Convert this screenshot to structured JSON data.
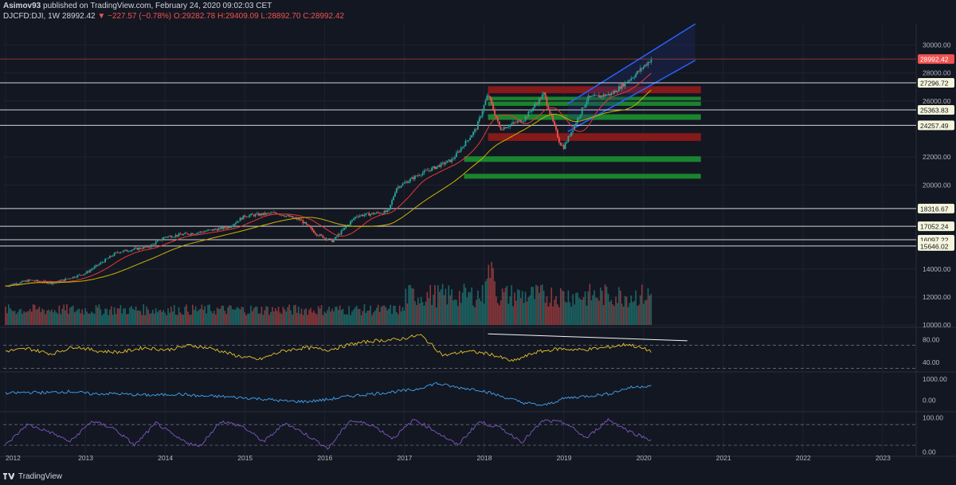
{
  "header": {
    "author": "Asimov93",
    "published": "published on TradingView.com, February 24, 2020 09:02:03 CET",
    "symbol": "DJCFD:DJI, 1W",
    "last": "28992.42",
    "change": "▼ −227.57 (−0.78%)",
    "ohlc": "O:29282.78 H:29409.09 L:28892.70 C:28992.42"
  },
  "footer": {
    "brand": "TradingView"
  },
  "colors": {
    "background": "#131722",
    "up": "#26a69a",
    "down": "#ef5350",
    "ma_fast": "#e53935",
    "ma_slow": "#c9b400",
    "channel": "#2962ff",
    "rsi_zone": "#3a1f5c"
  },
  "chart_data": [
    {
      "type": "candlestick",
      "series": [
        {
          "name": "price",
          "x": [
            2012.0,
            2012.3,
            2012.6,
            2013.0,
            2013.4,
            2013.8,
            2014.0,
            2014.4,
            2014.8,
            2015.0,
            2015.4,
            2015.7,
            2015.9,
            2016.1,
            2016.4,
            2016.8,
            2016.9,
            2017.2,
            2017.6,
            2017.9,
            2018.05,
            2018.2,
            2018.5,
            2018.75,
            2018.95,
            2019.0,
            2019.3,
            2019.6,
            2019.9,
            2020.1
          ],
          "values": [
            12800,
            13200,
            13000,
            13700,
            15200,
            15600,
            16300,
            16600,
            17000,
            17800,
            18000,
            17500,
            16500,
            16000,
            17800,
            18100,
            19800,
            20800,
            21800,
            24000,
            26500,
            24000,
            24700,
            26500,
            23000,
            22700,
            26200,
            26500,
            27900,
            28992
          ]
        }
      ],
      "title": "",
      "xlabel": "",
      "ylabel": "",
      "xlim": [
        2011.97,
        2023.42
      ],
      "ylim": [
        9900,
        31500
      ],
      "x_ticks": [
        "2012",
        "2013",
        "2014",
        "2015",
        "2016",
        "2017",
        "2018",
        "2019",
        "2020",
        "2021",
        "2022",
        "2023"
      ],
      "x_tick_values": [
        2012,
        2013,
        2014,
        2015,
        2016,
        2017,
        2018,
        2019,
        2020,
        2021,
        2022,
        2023
      ],
      "y_ticks": [
        "30000.00",
        "28000.00",
        "26000.00",
        "22000.00",
        "20000.00",
        "14000.00",
        "12000.00",
        "10000.00"
      ],
      "y_tick_values": [
        30000,
        28000,
        26000,
        22000,
        20000,
        14000,
        12000,
        10000
      ],
      "price_lines": [
        {
          "value": 28992.42,
          "label": "28992.42",
          "style": "current"
        },
        {
          "value": 27296.72,
          "label": "27296.72"
        },
        {
          "value": 25363.83,
          "label": "25363.83"
        },
        {
          "value": 24257.49,
          "label": "24257.49"
        },
        {
          "value": 18316.67,
          "label": "18316.67"
        },
        {
          "value": 17052.24,
          "label": "17052.24"
        },
        {
          "value": 16097.22,
          "label": "16097.22"
        },
        {
          "value": 15646.02,
          "label": "15646.02"
        }
      ],
      "zones": [
        {
          "color": "red",
          "from": 26550,
          "to": 27050
        },
        {
          "color": "green",
          "from": 26050,
          "to": 26300
        },
        {
          "color": "green",
          "from": 25650,
          "to": 25950
        },
        {
          "color": "green",
          "from": 24650,
          "to": 25050
        },
        {
          "color": "red",
          "from": 23150,
          "to": 23700
        },
        {
          "color": "green",
          "from": 21650,
          "to": 22050
        },
        {
          "color": "green",
          "from": 20450,
          "to": 20800
        }
      ],
      "grid": true,
      "overlays": [
        "volume",
        "moving averages",
        "trend channel"
      ]
    },
    {
      "type": "line",
      "series": [
        {
          "values": [
            60,
            64,
            55,
            68,
            60,
            58,
            66,
            62,
            70,
            64,
            52,
            45,
            60,
            66,
            62,
            72,
            78,
            80,
            88,
            52,
            60,
            55,
            42,
            58,
            64,
            62,
            66,
            72,
            60
          ]
        }
      ],
      "ylim": [
        25,
        100
      ],
      "y_ticks": [
        "80.00",
        "40.00"
      ],
      "y_tick_values": [
        80,
        40
      ],
      "bands": [
        70,
        30
      ]
    },
    {
      "type": "line",
      "series": [
        {
          "values": [
            320,
            380,
            360,
            420,
            300,
            320,
            260,
            240,
            300,
            200,
            180,
            120,
            60,
            -40,
            -60,
            40,
            200,
            300,
            400,
            500,
            800,
            600,
            500,
            200,
            -100,
            -250,
            100,
            200,
            300,
            600,
            700
          ]
        }
      ],
      "ylim": [
        -500,
        1300
      ],
      "y_ticks": [
        "1000.00",
        "0.00"
      ],
      "y_tick_values": [
        1000,
        0
      ]
    },
    {
      "type": "line",
      "series": [
        {
          "values": [
            20,
            80,
            60,
            30,
            90,
            70,
            20,
            85,
            40,
            15,
            90,
            75,
            30,
            85,
            50,
            10,
            92,
            80,
            40,
            95,
            60,
            20,
            88,
            70,
            30,
            92,
            85,
            40,
            95,
            60,
            35
          ]
        }
      ],
      "ylim": [
        -10,
        115
      ],
      "y_ticks": [
        "100.00",
        "0.00"
      ],
      "y_tick_values": [
        100,
        0
      ],
      "bands": [
        80,
        20
      ]
    }
  ]
}
